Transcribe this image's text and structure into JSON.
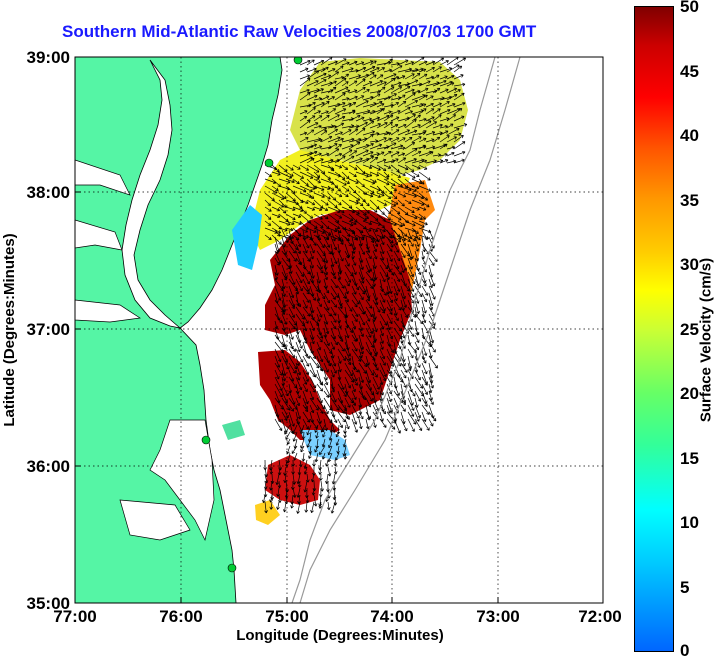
{
  "title": "Southern Mid-Atlantic Raw Velocities 2008/07/03 1700 GMT",
  "xlabel": "Longitude (Degrees:Minutes)",
  "ylabel": "Latitude (Degrees:Minutes)",
  "xticks": [
    "77:00",
    "76:00",
    "75:00",
    "74:00",
    "73:00",
    "72:00"
  ],
  "yticks": [
    "39:00",
    "38:00",
    "37:00",
    "36:00",
    "35:00"
  ],
  "colorbar": {
    "label": "Surface Velocity (cm/s)",
    "ticks": [
      "50",
      "45",
      "40",
      "35",
      "30",
      "25",
      "20",
      "15",
      "10",
      "5",
      "0"
    ]
  },
  "colors": {
    "land": "#55f5a5",
    "title": "#1a1aff",
    "grid": "#000000"
  },
  "chart_data": {
    "type": "heatmap",
    "title": "Southern Mid-Atlantic Raw Velocities 2008/07/03 1700 GMT",
    "xlabel": "Longitude (Degrees:Minutes)",
    "ylabel": "Latitude (Degrees:Minutes)",
    "xlim": [
      -77,
      -72
    ],
    "ylim": [
      35,
      39
    ],
    "clim": [
      0,
      50
    ],
    "colorbar_label": "Surface Velocity (cm/s)",
    "grid": true
  }
}
